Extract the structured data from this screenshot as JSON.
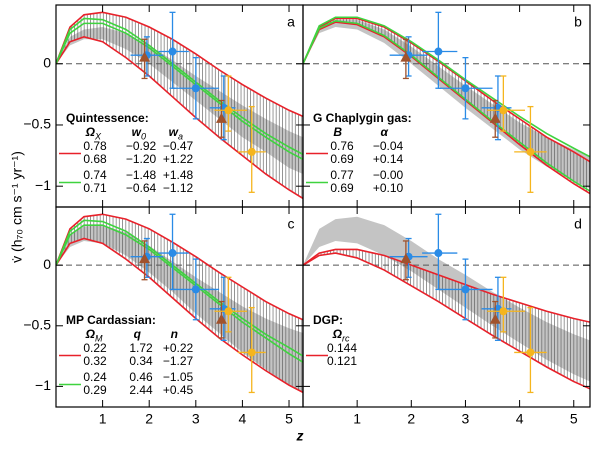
{
  "chart_data": {
    "type": "line",
    "xlabel": "z",
    "ylabel": "v̇ (h₇₀ cm s⁻¹ yr⁻¹)",
    "xlim": [
      0,
      5.3
    ],
    "ylim": [
      -1.17,
      0.48
    ],
    "xticks": [
      1,
      2,
      3,
      4,
      5
    ],
    "yticks": [
      {
        "value": -1,
        "label": "−1"
      },
      {
        "value": -0.5,
        "label": "−0.5"
      },
      0
    ],
    "x": [
      0,
      0.3,
      0.6,
      1,
      1.5,
      2,
      2.5,
      3,
      3.5,
      4,
      4.5,
      5,
      5.3
    ],
    "points": [
      {
        "x": 1.95,
        "y": 0.07,
        "x_lo": 1.6,
        "x_hi": 2.3,
        "y_lo": -0.1,
        "y_hi": 0.22,
        "color": "#2a8be6",
        "marker": "circle"
      },
      {
        "x": 2.5,
        "y": 0.1,
        "x_lo": 2.2,
        "x_hi": 2.85,
        "y_lo": -0.2,
        "y_hi": 0.42,
        "color": "#2a8be6",
        "marker": "circle"
      },
      {
        "x": 3.0,
        "y": -0.2,
        "x_lo": 2.5,
        "x_hi": 3.5,
        "y_lo": -0.45,
        "y_hi": 0.05,
        "color": "#2a8be6",
        "marker": "circle"
      },
      {
        "x": 3.6,
        "y": -0.36,
        "x_lo": 3.3,
        "x_hi": 3.85,
        "y_lo": -0.62,
        "y_hi": -0.1,
        "color": "#2a8be6",
        "marker": "circle"
      },
      {
        "x": 1.9,
        "y": 0.05,
        "y_lo": -0.12,
        "y_hi": 0.2,
        "color": "#a0522d",
        "marker": "triangle"
      },
      {
        "x": 3.55,
        "y": -0.45,
        "y_lo": -0.6,
        "y_hi": -0.3,
        "color": "#a0522d",
        "marker": "triangle"
      },
      {
        "x": 3.7,
        "y": -0.38,
        "x_lo": 3.4,
        "x_hi": 4.1,
        "y_lo": -0.55,
        "y_hi": -0.1,
        "color": "#f5b51e",
        "marker": "circle"
      },
      {
        "x": 4.2,
        "y": -0.72,
        "x_lo": 3.9,
        "x_hi": 4.5,
        "y_lo": -1.05,
        "y_hi": -0.35,
        "color": "#f5b51e",
        "marker": "circle"
      }
    ],
    "panels": [
      {
        "label": "a",
        "legend_title": "Quintessence:",
        "legend_headers": [
          {
            "symbol": "Ω",
            "sub": "X"
          },
          {
            "symbol": "w",
            "sub": "0"
          },
          {
            "symbol": "w",
            "sub": "a"
          }
        ],
        "band": {
          "color": "#c4c4c4",
          "lower": [
            0,
            0.15,
            0.2,
            0.2,
            0.12,
            0.0,
            -0.15,
            -0.3,
            -0.45,
            -0.6,
            -0.72,
            -0.85,
            -0.9
          ],
          "upper": [
            0,
            0.22,
            0.28,
            0.3,
            0.25,
            0.15,
            0.03,
            -0.1,
            -0.22,
            -0.34,
            -0.45,
            -0.55,
            -0.6
          ]
        },
        "series": [
          {
            "color": "#e8212a",
            "params": [
              "0.78",
              "−0.92",
              "−0.47"
            ],
            "values": [
              0,
              0.3,
              0.4,
              0.42,
              0.38,
              0.3,
              0.2,
              0.08,
              -0.05,
              -0.17,
              -0.28,
              -0.38,
              -0.43
            ]
          },
          {
            "color": "#e8212a",
            "params": [
              "0.68",
              "−1.20",
              "+1.22"
            ],
            "values": [
              0,
              0.18,
              0.22,
              0.18,
              0.05,
              -0.1,
              -0.27,
              -0.44,
              -0.6,
              -0.75,
              -0.9,
              -1.03,
              -1.1
            ]
          },
          {
            "color": "#3fd33f",
            "params": [
              "0.74",
              "−1.48",
              "+1.48"
            ],
            "values": [
              0,
              0.28,
              0.37,
              0.36,
              0.28,
              0.15,
              0.0,
              -0.15,
              -0.3,
              -0.44,
              -0.57,
              -0.68,
              -0.74
            ]
          },
          {
            "color": "#3fd33f",
            "params": [
              "0.71",
              "−0.64",
              "−1.12"
            ],
            "values": [
              0,
              0.25,
              0.33,
              0.33,
              0.25,
              0.13,
              -0.02,
              -0.17,
              -0.32,
              -0.47,
              -0.6,
              -0.72,
              -0.78
            ]
          }
        ]
      },
      {
        "label": "b",
        "legend_title": "G Chaplygin gas:",
        "legend_headers": [
          {
            "symbol": "B"
          },
          {
            "symbol": "α"
          }
        ],
        "band": {
          "color": "#c4c4c4",
          "lower": [
            0,
            0.25,
            0.3,
            0.28,
            0.17,
            0.0,
            -0.18,
            -0.36,
            -0.53,
            -0.7,
            -0.84,
            -0.96,
            -1.02
          ],
          "upper": [
            0,
            0.3,
            0.36,
            0.36,
            0.28,
            0.14,
            -0.02,
            -0.18,
            -0.33,
            -0.48,
            -0.6,
            -0.7,
            -0.75
          ]
        },
        "series": [
          {
            "color": "#e8212a",
            "params": [
              "0.76",
              "−0.04"
            ],
            "values": [
              0,
              0.3,
              0.37,
              0.37,
              0.3,
              0.17,
              0.02,
              -0.14,
              -0.3,
              -0.45,
              -0.6,
              -0.72,
              -0.8
            ]
          },
          {
            "color": "#e8212a",
            "params": [
              "0.69",
              "+0.14"
            ],
            "values": [
              0,
              0.28,
              0.34,
              0.32,
              0.22,
              0.06,
              -0.12,
              -0.3,
              -0.48,
              -0.66,
              -0.83,
              -0.98,
              -1.06
            ]
          },
          {
            "color": "#3fd33f",
            "params": [
              "0.77",
              "−0.00"
            ],
            "values": [
              0,
              0.31,
              0.38,
              0.38,
              0.31,
              0.18,
              0.03,
              -0.13,
              -0.28,
              -0.43,
              -0.57,
              -0.69,
              -0.76
            ]
          },
          {
            "color": "#3fd33f",
            "params": [
              "0.69",
              "+0.10"
            ],
            "values": [
              0,
              0.29,
              0.35,
              0.33,
              0.23,
              0.07,
              -0.11,
              -0.29,
              -0.47,
              -0.64,
              -0.81,
              -0.96,
              -1.04
            ]
          }
        ]
      },
      {
        "label": "c",
        "legend_title": "MP Cardassian:",
        "legend_headers": [
          {
            "symbol": "Ω",
            "sub": "M"
          },
          {
            "symbol": "q"
          },
          {
            "symbol": "n"
          }
        ],
        "band": {
          "color": "#c4c4c4",
          "lower": [
            0,
            0.15,
            0.2,
            0.18,
            0.08,
            -0.06,
            -0.22,
            -0.4,
            -0.56,
            -0.72,
            -0.86,
            -0.99,
            -1.05
          ],
          "upper": [
            0,
            0.25,
            0.32,
            0.33,
            0.27,
            0.16,
            0.03,
            -0.1,
            -0.22,
            -0.34,
            -0.44,
            -0.52,
            -0.56
          ]
        },
        "series": [
          {
            "color": "#e8212a",
            "params": [
              "0.22",
              "1.72",
              "+0.22"
            ],
            "values": [
              0,
              0.3,
              0.4,
              0.42,
              0.38,
              0.3,
              0.19,
              0.07,
              -0.06,
              -0.18,
              -0.3,
              -0.4,
              -0.45
            ]
          },
          {
            "color": "#e8212a",
            "params": [
              "0.32",
              "0.34",
              "−1.27"
            ],
            "values": [
              0,
              0.18,
              0.22,
              0.18,
              0.05,
              -0.1,
              -0.27,
              -0.44,
              -0.6,
              -0.74,
              -0.87,
              -0.99,
              -1.05
            ]
          },
          {
            "color": "#3fd33f",
            "params": [
              "0.24",
              "0.46",
              "−1.05"
            ],
            "values": [
              0,
              0.28,
              0.37,
              0.36,
              0.28,
              0.15,
              0.0,
              -0.15,
              -0.3,
              -0.44,
              -0.57,
              -0.68,
              -0.75
            ]
          },
          {
            "color": "#3fd33f",
            "params": [
              "0.29",
              "2.44",
              "+0.45"
            ],
            "values": [
              0,
              0.25,
              0.33,
              0.33,
              0.25,
              0.13,
              -0.02,
              -0.17,
              -0.32,
              -0.47,
              -0.6,
              -0.73,
              -0.8
            ]
          }
        ]
      },
      {
        "label": "d",
        "legend_title": "DGP:",
        "legend_headers": [
          {
            "symbol": "Ω",
            "sub": "rc"
          }
        ],
        "band": {
          "color": "#c4c4c4",
          "lower": [
            0,
            0.15,
            0.2,
            0.18,
            0.08,
            -0.05,
            -0.2,
            -0.35,
            -0.5,
            -0.64,
            -0.78,
            -0.9,
            -0.96
          ],
          "upper": [
            0,
            0.3,
            0.38,
            0.4,
            0.33,
            0.2,
            0.05,
            -0.08,
            -0.22,
            -0.35,
            -0.47,
            -0.57,
            -0.62
          ]
        },
        "series": [
          {
            "color": "#e8212a",
            "params": [
              "0.144"
            ],
            "values": [
              0,
              0.1,
              0.13,
              0.13,
              0.08,
              0.0,
              -0.08,
              -0.16,
              -0.24,
              -0.31,
              -0.38,
              -0.44,
              -0.47
            ]
          },
          {
            "color": "#e8212a",
            "params": [
              "0.121"
            ],
            "values": [
              0,
              0.08,
              0.1,
              0.06,
              -0.04,
              -0.17,
              -0.3,
              -0.44,
              -0.58,
              -0.71,
              -0.84,
              -0.96,
              -1.02
            ]
          }
        ]
      }
    ]
  }
}
